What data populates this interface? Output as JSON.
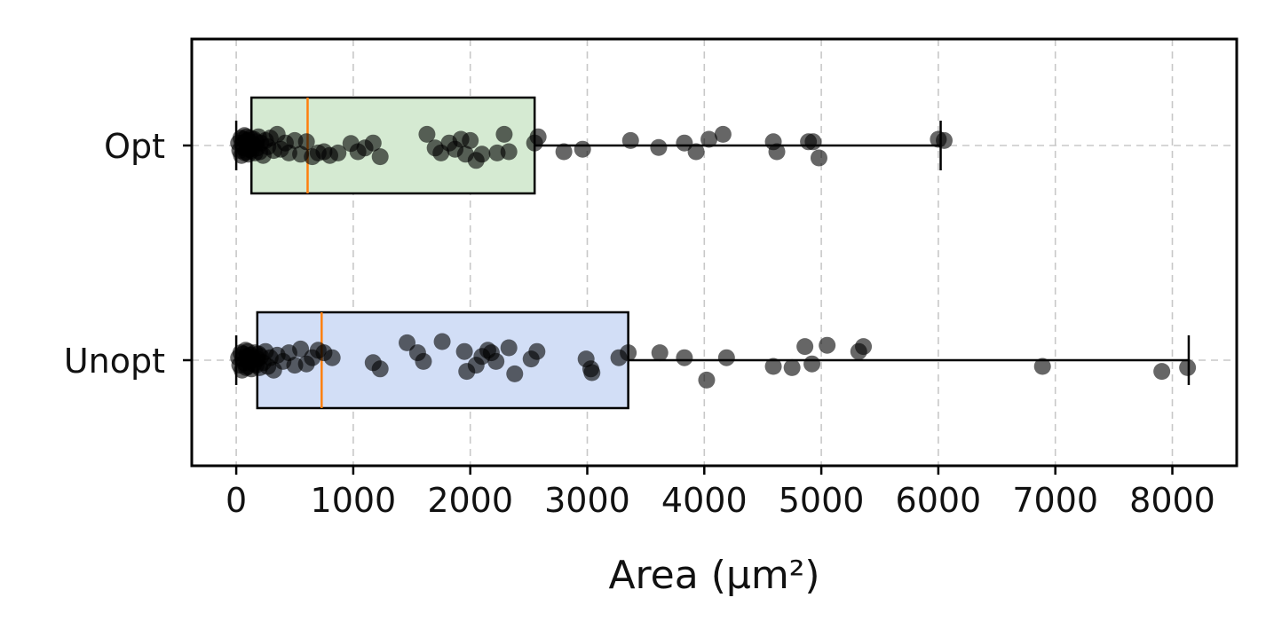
{
  "chart_data": {
    "type": "box",
    "orientation": "horizontal",
    "xlabel": "Area (µm²)",
    "ylabel": "",
    "xlim": [
      -380,
      8550
    ],
    "x_ticks": [
      0,
      1000,
      2000,
      3000,
      4000,
      5000,
      6000,
      7000,
      8000
    ],
    "x_tick_labels": [
      "0",
      "1000",
      "2000",
      "3000",
      "4000",
      "5000",
      "6000",
      "7000",
      "8000"
    ],
    "grid": true,
    "categories": [
      "Opt",
      "Unopt"
    ],
    "series": [
      {
        "category": "Opt",
        "box_color": "#d5ead2",
        "box": {
          "whisker_low": 0,
          "q1": 130,
          "median": 610,
          "q3": 2550,
          "whisker_high": 6020
        },
        "points": [
          [
            20,
            0.1
          ],
          [
            30,
            -0.2
          ],
          [
            40,
            0.3
          ],
          [
            45,
            -0.4
          ],
          [
            50,
            0.05
          ],
          [
            60,
            0.25
          ],
          [
            65,
            -0.1
          ],
          [
            70,
            0.4
          ],
          [
            75,
            -0.3
          ],
          [
            80,
            0.15
          ],
          [
            85,
            -0.25
          ],
          [
            90,
            0.35
          ],
          [
            95,
            -0.05
          ],
          [
            100,
            0.2
          ],
          [
            105,
            -0.35
          ],
          [
            110,
            0.1
          ],
          [
            115,
            -0.15
          ],
          [
            120,
            0.3
          ],
          [
            130,
            -0.2
          ],
          [
            140,
            0.05
          ],
          [
            150,
            0.25
          ],
          [
            160,
            -0.3
          ],
          [
            170,
            0.15
          ],
          [
            180,
            -0.1
          ],
          [
            190,
            0.35
          ],
          [
            200,
            -0.25
          ],
          [
            210,
            0.1
          ],
          [
            230,
            -0.4
          ],
          [
            250,
            0.2
          ],
          [
            270,
            -0.05
          ],
          [
            290,
            0.3
          ],
          [
            320,
            -0.2
          ],
          [
            350,
            0.45
          ],
          [
            380,
            -0.15
          ],
          [
            420,
            0.1
          ],
          [
            450,
            -0.3
          ],
          [
            500,
            0.2
          ],
          [
            550,
            -0.35
          ],
          [
            600,
            0.15
          ],
          [
            650,
            -0.45
          ],
          [
            700,
            -0.3
          ],
          [
            750,
            -0.25
          ],
          [
            800,
            -0.4
          ],
          [
            870,
            -0.3
          ],
          [
            980,
            0.08
          ],
          [
            1040,
            -0.25
          ],
          [
            1100,
            -0.1
          ],
          [
            1170,
            0.1
          ],
          [
            1230,
            -0.45
          ],
          [
            1630,
            0.45
          ],
          [
            1700,
            -0.1
          ],
          [
            1750,
            -0.3
          ],
          [
            1820,
            0.1
          ],
          [
            1870,
            -0.15
          ],
          [
            1920,
            0.25
          ],
          [
            1960,
            -0.35
          ],
          [
            2000,
            0.2
          ],
          [
            2050,
            -0.6
          ],
          [
            2100,
            -0.35
          ],
          [
            2230,
            -0.3
          ],
          [
            2290,
            0.45
          ],
          [
            2330,
            -0.25
          ],
          [
            2550,
            0.1
          ],
          [
            2580,
            0.35
          ],
          [
            2800,
            -0.25
          ],
          [
            2960,
            -0.15
          ],
          [
            3370,
            0.2
          ],
          [
            3610,
            -0.08
          ],
          [
            3830,
            0.1
          ],
          [
            3930,
            -0.25
          ],
          [
            4040,
            0.25
          ],
          [
            4160,
            0.45
          ],
          [
            4590,
            0.15
          ],
          [
            4620,
            -0.25
          ],
          [
            4890,
            0.15
          ],
          [
            4930,
            0.15
          ],
          [
            4980,
            -0.5
          ],
          [
            6000,
            0.25
          ],
          [
            6050,
            0.2
          ]
        ]
      },
      {
        "category": "Unopt",
        "box_color": "#d2def6",
        "box": {
          "whisker_low": 0,
          "q1": 180,
          "median": 730,
          "q3": 3350,
          "whisker_high": 8140
        },
        "points": [
          [
            20,
            0.1
          ],
          [
            30,
            -0.2
          ],
          [
            40,
            0.3
          ],
          [
            50,
            -0.4
          ],
          [
            55,
            0.05
          ],
          [
            60,
            0.25
          ],
          [
            70,
            -0.1
          ],
          [
            80,
            0.4
          ],
          [
            85,
            -0.3
          ],
          [
            90,
            0.15
          ],
          [
            95,
            -0.25
          ],
          [
            100,
            0.35
          ],
          [
            110,
            -0.05
          ],
          [
            120,
            0.2
          ],
          [
            130,
            -0.35
          ],
          [
            140,
            0.1
          ],
          [
            150,
            -0.15
          ],
          [
            160,
            0.3
          ],
          [
            170,
            -0.2
          ],
          [
            180,
            0.05
          ],
          [
            190,
            0.25
          ],
          [
            200,
            -0.3
          ],
          [
            210,
            0.15
          ],
          [
            230,
            -0.1
          ],
          [
            250,
            0.35
          ],
          [
            270,
            -0.25
          ],
          [
            290,
            0.1
          ],
          [
            320,
            -0.4
          ],
          [
            350,
            0.2
          ],
          [
            400,
            -0.05
          ],
          [
            450,
            0.3
          ],
          [
            500,
            -0.2
          ],
          [
            550,
            0.45
          ],
          [
            600,
            -0.15
          ],
          [
            650,
            0.1
          ],
          [
            700,
            0.4
          ],
          [
            750,
            0.3
          ],
          [
            820,
            0.1
          ],
          [
            1170,
            -0.1
          ],
          [
            1230,
            -0.35
          ],
          [
            1460,
            0.7
          ],
          [
            1550,
            0.3
          ],
          [
            1600,
            -0.05
          ],
          [
            1760,
            0.75
          ],
          [
            1950,
            0.35
          ],
          [
            1970,
            -0.45
          ],
          [
            2050,
            -0.2
          ],
          [
            2100,
            0.15
          ],
          [
            2150,
            0.4
          ],
          [
            2180,
            0.3
          ],
          [
            2220,
            -0.05
          ],
          [
            2330,
            0.5
          ],
          [
            2380,
            -0.55
          ],
          [
            2520,
            0.05
          ],
          [
            2570,
            0.35
          ],
          [
            2990,
            0.05
          ],
          [
            3030,
            -0.35
          ],
          [
            3040,
            -0.5
          ],
          [
            3270,
            0.1
          ],
          [
            3350,
            0.3
          ],
          [
            3620,
            0.3
          ],
          [
            3830,
            0.1
          ],
          [
            4020,
            -0.8
          ],
          [
            4190,
            0.1
          ],
          [
            4590,
            -0.25
          ],
          [
            4750,
            -0.3
          ],
          [
            4860,
            0.55
          ],
          [
            4920,
            -0.15
          ],
          [
            5050,
            0.6
          ],
          [
            5320,
            0.35
          ],
          [
            5360,
            0.55
          ],
          [
            6890,
            -0.25
          ],
          [
            7910,
            -0.45
          ],
          [
            8130,
            -0.3
          ]
        ]
      }
    ]
  }
}
